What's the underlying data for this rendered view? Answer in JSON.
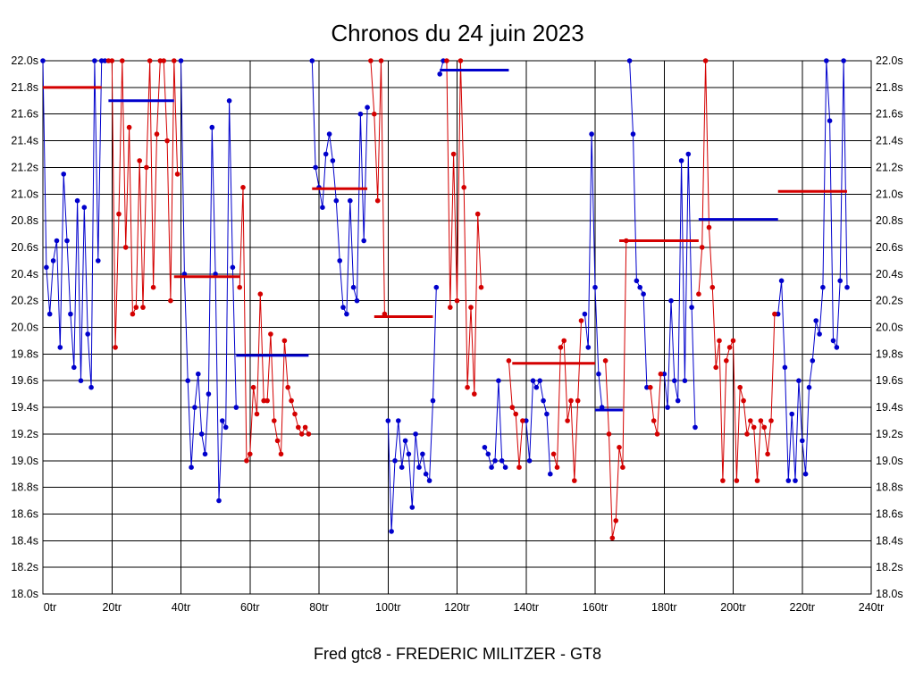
{
  "title": "Chronos du 24 juin 2023",
  "footer": "Fred gtc8 - FREDERIC MILITZER - GT8",
  "colors": {
    "blue": "#0000cc",
    "red": "#d40000",
    "grid": "#000000",
    "background": "#ffffff",
    "text": "#000000"
  },
  "chart_data": {
    "type": "scatter",
    "title": "Chronos du 24 juin 2023",
    "x_unit": "tr",
    "y_unit": "s",
    "xlim": [
      0,
      240
    ],
    "ylim": [
      18.0,
      22.0
    ],
    "x_tick_step": 20,
    "y_tick_step": 0.2,
    "grid": true,
    "y_labels_both_sides": true,
    "series": [
      {
        "name": "blue-driver-laps",
        "color": "#0000cc",
        "segments": [
          {
            "start_lap": 0,
            "values": [
              22.0,
              20.45,
              20.1,
              20.5,
              20.65,
              19.85,
              21.15,
              20.65,
              20.1,
              19.7,
              20.95,
              19.6,
              20.9,
              19.95,
              19.55,
              22.0,
              20.5,
              22.0,
              22.0
            ]
          },
          {
            "start_lap": 40,
            "values": [
              22.0,
              20.4,
              19.6,
              18.95,
              19.4,
              19.65,
              19.2,
              19.05,
              19.5,
              21.5,
              20.4,
              18.7,
              19.3,
              19.25,
              21.7,
              20.45,
              19.4
            ]
          },
          {
            "start_lap": 78,
            "values": [
              22.0,
              21.2,
              21.05,
              20.9,
              21.3,
              21.45,
              21.25,
              20.95,
              20.5,
              20.15,
              20.1,
              20.95,
              20.3,
              20.2,
              21.6,
              20.65,
              21.65
            ]
          },
          {
            "start_lap": 100,
            "values": [
              19.3,
              18.47,
              19.0,
              19.3,
              18.95,
              19.15,
              19.05,
              18.65,
              19.2,
              18.95,
              19.05,
              18.9,
              18.85,
              19.45,
              20.3
            ]
          },
          {
            "start_lap": 115,
            "values": [
              21.9,
              22.0
            ]
          },
          {
            "start_lap": 128,
            "values": [
              19.1,
              19.05,
              18.95,
              19.0,
              19.6,
              19.0,
              18.95
            ]
          },
          {
            "start_lap": 140,
            "values": [
              19.3,
              19.0,
              19.6,
              19.55,
              19.6,
              19.45,
              19.35,
              18.9
            ]
          },
          {
            "start_lap": 157,
            "values": [
              20.1,
              19.85,
              21.45,
              20.3,
              19.65,
              19.4
            ]
          },
          {
            "start_lap": 170,
            "values": [
              22.0,
              21.45,
              20.35,
              20.3,
              20.25,
              19.55
            ]
          },
          {
            "start_lap": 180,
            "values": [
              19.65,
              19.4,
              20.2,
              19.6,
              19.45,
              21.25,
              19.6,
              21.3,
              20.15,
              19.25
            ]
          },
          {
            "start_lap": 213,
            "values": [
              20.1,
              20.35,
              19.7,
              18.85,
              19.35,
              18.85,
              19.6,
              19.15,
              18.9,
              19.55,
              19.75,
              20.05,
              19.95,
              20.3,
              22.0,
              21.55,
              19.9,
              19.85,
              20.35,
              22.0,
              20.3
            ]
          }
        ]
      },
      {
        "name": "red-driver-laps",
        "color": "#d40000",
        "segments": [
          {
            "start_lap": 19,
            "values": [
              22.0,
              22.0,
              19.85,
              20.85,
              22.0,
              20.6,
              21.5,
              20.1,
              20.15,
              21.25,
              20.15,
              21.2,
              22.0,
              20.3,
              21.45,
              22.0,
              22.0,
              21.4,
              20.2,
              22.0,
              21.15
            ]
          },
          {
            "start_lap": 57,
            "values": [
              20.3,
              21.05,
              19.0,
              19.05,
              19.55,
              19.35,
              20.25,
              19.45,
              19.45,
              19.95,
              19.3,
              19.15,
              19.05,
              19.9,
              19.55,
              19.45,
              19.35,
              19.25,
              19.2,
              19.25,
              19.2
            ]
          },
          {
            "start_lap": 95,
            "values": [
              22.0,
              21.6,
              20.95,
              22.0,
              20.1
            ]
          },
          {
            "start_lap": 117,
            "values": [
              22.0,
              20.15,
              21.3,
              20.2,
              22.0,
              21.05,
              19.55,
              20.15,
              19.5,
              20.85,
              20.3
            ]
          },
          {
            "start_lap": 135,
            "values": [
              19.75,
              19.4,
              19.35,
              18.95,
              19.3
            ]
          },
          {
            "start_lap": 148,
            "values": [
              19.05,
              18.95,
              19.85,
              19.9,
              19.3,
              19.45,
              18.85,
              19.45,
              20.05
            ]
          },
          {
            "start_lap": 163,
            "values": [
              19.75,
              19.2,
              18.42,
              18.55,
              19.1,
              18.95,
              20.65
            ]
          },
          {
            "start_lap": 176,
            "values": [
              19.55,
              19.3,
              19.2,
              19.65
            ]
          },
          {
            "start_lap": 190,
            "values": [
              20.25,
              20.6,
              22.0,
              20.75,
              20.3,
              19.7,
              19.9,
              18.85,
              19.75,
              19.85,
              19.9,
              18.85,
              19.55,
              19.45,
              19.2,
              19.3,
              19.25,
              18.85,
              19.3,
              19.25,
              19.05,
              19.3,
              20.1
            ]
          }
        ]
      }
    ],
    "stint_averages": [
      {
        "color": "red",
        "from_lap": 0,
        "to_lap": 17,
        "value": 21.8
      },
      {
        "color": "blue",
        "from_lap": 19,
        "to_lap": 38,
        "value": 21.7
      },
      {
        "color": "red",
        "from_lap": 38,
        "to_lap": 57,
        "value": 20.38
      },
      {
        "color": "blue",
        "from_lap": 56,
        "to_lap": 77,
        "value": 19.79
      },
      {
        "color": "red",
        "from_lap": 78,
        "to_lap": 94,
        "value": 21.04
      },
      {
        "color": "red",
        "from_lap": 96,
        "to_lap": 113,
        "value": 20.08
      },
      {
        "color": "blue",
        "from_lap": 115,
        "to_lap": 135,
        "value": 21.93
      },
      {
        "color": "red",
        "from_lap": 136,
        "to_lap": 160,
        "value": 19.73
      },
      {
        "color": "blue",
        "from_lap": 160,
        "to_lap": 168,
        "value": 19.38
      },
      {
        "color": "red",
        "from_lap": 167,
        "to_lap": 190,
        "value": 20.65
      },
      {
        "color": "blue",
        "from_lap": 190,
        "to_lap": 213,
        "value": 20.81
      },
      {
        "color": "red",
        "from_lap": 213,
        "to_lap": 233,
        "value": 21.02
      }
    ]
  }
}
